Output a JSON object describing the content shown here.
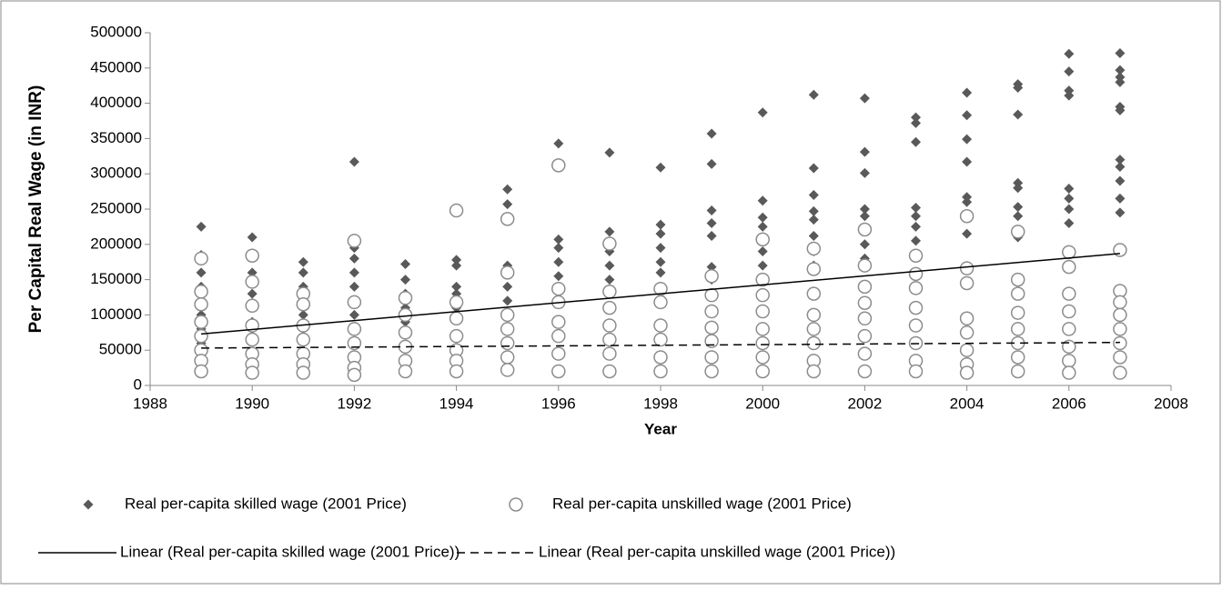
{
  "chart_data": {
    "type": "scatter",
    "xlabel": "Year",
    "ylabel": "Per Capital Real Wage (in INR)",
    "xlim": [
      1988,
      2008
    ],
    "xticks": [
      1988,
      1990,
      1992,
      1994,
      1996,
      1998,
      2000,
      2002,
      2004,
      2006,
      2008
    ],
    "ylim": [
      0,
      500000
    ],
    "yticks": [
      0,
      50000,
      100000,
      150000,
      200000,
      250000,
      300000,
      350000,
      400000,
      450000,
      500000
    ],
    "grid": false,
    "series": [
      {
        "name": "Real per-capita skilled wage (2001 Price)",
        "type": "scatter",
        "marker": "diamond",
        "color": "#595959",
        "x": [
          1989,
          1989,
          1989,
          1989,
          1989,
          1989,
          1989,
          1989,
          1990,
          1990,
          1990,
          1990,
          1990,
          1990,
          1990,
          1991,
          1991,
          1991,
          1991,
          1991,
          1991,
          1992,
          1992,
          1992,
          1992,
          1992,
          1992,
          1992,
          1993,
          1993,
          1993,
          1993,
          1993,
          1994,
          1994,
          1994,
          1994,
          1994,
          1994,
          1995,
          1995,
          1995,
          1995,
          1995,
          1995,
          1996,
          1996,
          1996,
          1996,
          1996,
          1996,
          1996,
          1997,
          1997,
          1997,
          1997,
          1997,
          1997,
          1998,
          1998,
          1998,
          1998,
          1998,
          1998,
          1998,
          1999,
          1999,
          1999,
          1999,
          1999,
          1999,
          1999,
          2000,
          2000,
          2000,
          2000,
          2000,
          2000,
          2000,
          2000,
          2001,
          2001,
          2001,
          2001,
          2001,
          2001,
          2001,
          2001,
          2002,
          2002,
          2002,
          2002,
          2002,
          2002,
          2002,
          2002,
          2003,
          2003,
          2003,
          2003,
          2003,
          2003,
          2003,
          2003,
          2004,
          2004,
          2004,
          2004,
          2004,
          2004,
          2004,
          2004,
          2005,
          2005,
          2005,
          2005,
          2005,
          2005,
          2005,
          2005,
          2006,
          2006,
          2006,
          2006,
          2006,
          2006,
          2006,
          2006,
          2007,
          2007,
          2007,
          2007,
          2007,
          2007,
          2007,
          2007,
          2007,
          2007,
          2007
        ],
        "values": [
          225000,
          185000,
          160000,
          140000,
          120000,
          100000,
          80000,
          60000,
          210000,
          185000,
          160000,
          130000,
          110000,
          90000,
          70000,
          175000,
          160000,
          140000,
          120000,
          100000,
          80000,
          317000,
          195000,
          180000,
          160000,
          140000,
          120000,
          100000,
          172000,
          150000,
          130000,
          110000,
          90000,
          178000,
          170000,
          140000,
          130000,
          110000,
          100000,
          278000,
          257000,
          170000,
          140000,
          120000,
          100000,
          343000,
          207000,
          195000,
          175000,
          155000,
          140000,
          120000,
          330000,
          218000,
          190000,
          170000,
          150000,
          130000,
          309000,
          228000,
          215000,
          195000,
          175000,
          160000,
          140000,
          357000,
          314000,
          248000,
          230000,
          212000,
          168000,
          150000,
          387000,
          262000,
          238000,
          225000,
          210000,
          190000,
          170000,
          150000,
          412000,
          308000,
          270000,
          247000,
          235000,
          212000,
          190000,
          170000,
          407000,
          331000,
          301000,
          250000,
          240000,
          220000,
          200000,
          180000,
          380000,
          372000,
          345000,
          252000,
          240000,
          225000,
          205000,
          185000,
          415000,
          383000,
          349000,
          317000,
          267000,
          260000,
          240000,
          215000,
          427000,
          422000,
          384000,
          287000,
          280000,
          253000,
          240000,
          210000,
          470000,
          445000,
          418000,
          411000,
          279000,
          265000,
          250000,
          230000,
          471000,
          447000,
          437000,
          430000,
          395000,
          390000,
          320000,
          310000,
          290000,
          265000,
          245000
        ]
      },
      {
        "name": "Real per-capita unskilled wage (2001 Price)",
        "type": "scatter",
        "marker": "circle",
        "color": "#8c8c8c",
        "x": [
          1989,
          1989,
          1989,
          1989,
          1989,
          1989,
          1989,
          1989,
          1990,
          1990,
          1990,
          1990,
          1990,
          1990,
          1990,
          1990,
          1991,
          1991,
          1991,
          1991,
          1991,
          1991,
          1991,
          1992,
          1992,
          1992,
          1992,
          1992,
          1992,
          1992,
          1993,
          1993,
          1993,
          1993,
          1993,
          1993,
          1994,
          1994,
          1994,
          1994,
          1994,
          1994,
          1994,
          1995,
          1995,
          1995,
          1995,
          1995,
          1995,
          1995,
          1996,
          1996,
          1996,
          1996,
          1996,
          1996,
          1996,
          1997,
          1997,
          1997,
          1997,
          1997,
          1997,
          1997,
          1998,
          1998,
          1998,
          1998,
          1998,
          1998,
          1999,
          1999,
          1999,
          1999,
          1999,
          1999,
          1999,
          2000,
          2000,
          2000,
          2000,
          2000,
          2000,
          2000,
          2000,
          2001,
          2001,
          2001,
          2001,
          2001,
          2001,
          2001,
          2001,
          2002,
          2002,
          2002,
          2002,
          2002,
          2002,
          2002,
          2002,
          2003,
          2003,
          2003,
          2003,
          2003,
          2003,
          2003,
          2003,
          2004,
          2004,
          2004,
          2004,
          2004,
          2004,
          2004,
          2004,
          2005,
          2005,
          2005,
          2005,
          2005,
          2005,
          2005,
          2005,
          2006,
          2006,
          2006,
          2006,
          2006,
          2006,
          2006,
          2006,
          2007,
          2007,
          2007,
          2007,
          2007,
          2007,
          2007,
          2007
        ],
        "values": [
          180000,
          133000,
          115000,
          90000,
          70000,
          50000,
          35000,
          20000,
          184000,
          147000,
          113000,
          85000,
          65000,
          45000,
          30000,
          18000,
          130000,
          115000,
          85000,
          65000,
          45000,
          30000,
          18000,
          205000,
          118000,
          80000,
          60000,
          40000,
          25000,
          15000,
          124000,
          100000,
          75000,
          55000,
          35000,
          20000,
          248000,
          118000,
          95000,
          70000,
          50000,
          35000,
          20000,
          236000,
          160000,
          100000,
          80000,
          60000,
          40000,
          22000,
          312000,
          137000,
          118000,
          90000,
          70000,
          45000,
          20000,
          201000,
          133000,
          110000,
          85000,
          65000,
          45000,
          20000,
          137000,
          118000,
          85000,
          65000,
          40000,
          20000,
          155000,
          128000,
          105000,
          82000,
          63000,
          40000,
          20000,
          207000,
          150000,
          128000,
          105000,
          80000,
          60000,
          40000,
          20000,
          194000,
          165000,
          130000,
          100000,
          80000,
          60000,
          35000,
          20000,
          221000,
          170000,
          140000,
          117000,
          95000,
          70000,
          45000,
          20000,
          184000,
          158000,
          138000,
          110000,
          85000,
          60000,
          35000,
          20000,
          240000,
          166000,
          145000,
          95000,
          75000,
          50000,
          30000,
          18000,
          218000,
          150000,
          130000,
          103000,
          80000,
          60000,
          40000,
          20000,
          189000,
          168000,
          130000,
          105000,
          80000,
          55000,
          35000,
          18000,
          192000,
          134000,
          118000,
          100000,
          80000,
          60000,
          40000,
          18000
        ]
      },
      {
        "name": "Linear (Real per-capita skilled wage (2001 Price))",
        "type": "line",
        "dash": false,
        "color": "#000000",
        "x": [
          1989,
          2007
        ],
        "values": [
          73000,
          187000
        ]
      },
      {
        "name": "Linear (Real per-capita unskilled wage (2001 Price))",
        "type": "line",
        "dash": true,
        "color": "#000000",
        "x": [
          1989,
          2007
        ],
        "values": [
          53000,
          61000
        ]
      }
    ]
  }
}
